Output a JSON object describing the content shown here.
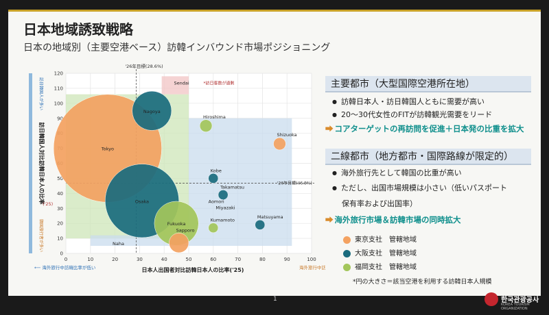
{
  "slide": {
    "title": "日本地域誘致戦略",
    "subtitle": "日本の地域別（主要空港ベース）訪韓インバウンド市場ポジショニング",
    "page": "1"
  },
  "colors": {
    "tokyo": "#f4a261",
    "osaka": "#1b6c7e",
    "fukuoka": "#a3c65b",
    "green_zone": "#cde6b8",
    "blue_zone": "#c9dced",
    "red_zone": "#f2c4c4",
    "teal_text": "#0f8f8c",
    "orange_arrow": "#d98b2b"
  },
  "chart_data": {
    "type": "scatter",
    "xlabel": "日本人出国者対比訪韓日本人の比率('25)",
    "ylabel": "訪日韓国人対比訪韓日本人の比率",
    "ylabel_year": "('25)",
    "ylabel_top_prefix": "訪日韓国人が多い",
    "ylabel_bottom": "韓国旅行者が多い",
    "x_left_note": "海外旅行中訪韓比率が低い",
    "x_right_note": "海外旅行中訪韓比率が高い",
    "xlim": [
      0,
      100
    ],
    "ylim": [
      0,
      120
    ],
    "x_ticks": [
      0,
      10,
      20,
      30,
      40,
      50,
      60,
      70,
      80,
      90,
      100
    ],
    "y_ticks": [
      0,
      10,
      20,
      30,
      40,
      50,
      60,
      70,
      80,
      90,
      100,
      110,
      120
    ],
    "grid": true,
    "target_x": {
      "value": 28.6,
      "label": "'26年目標(28.6%)"
    },
    "target_y": {
      "value": 46.8,
      "label": "'26年目標(46.8%)"
    },
    "zones": [
      {
        "name": "green",
        "x": [
          0,
          50
        ],
        "y": [
          10,
          106
        ]
      },
      {
        "name": "blue",
        "x": [
          50,
          92
        ],
        "y": [
          5,
          90
        ]
      },
      {
        "name": "blue-low",
        "x": [
          10,
          50
        ],
        "y": [
          5,
          12
        ]
      },
      {
        "name": "red",
        "x": [
          39,
          50
        ],
        "y": [
          106,
          118
        ]
      }
    ],
    "annotations": [
      {
        "text": "*訪日客数が過剰",
        "x": 56,
        "y": 112.5
      }
    ],
    "points": [
      {
        "name": "Tokyo",
        "x": 17,
        "y": 70,
        "size": 22,
        "group": "tokyo"
      },
      {
        "name": "Osaka",
        "x": 31,
        "y": 35,
        "size": 15,
        "group": "osaka"
      },
      {
        "name": "Nagoya",
        "x": 35,
        "y": 95,
        "size": 8,
        "group": "osaka"
      },
      {
        "name": "Fukuoka",
        "x": 45,
        "y": 20,
        "size": 9,
        "group": "fukuoka"
      },
      {
        "name": "Sapporo",
        "x": 46,
        "y": 7,
        "size": 4,
        "group": "tokyo"
      },
      {
        "name": "Naha",
        "x": 19,
        "y": 6,
        "size": 0,
        "group": "none"
      },
      {
        "name": "Sendai",
        "x": 44,
        "y": 113,
        "size": 0,
        "group": "none"
      },
      {
        "name": "Hiroshima",
        "x": 57,
        "y": 85,
        "size": 2.5,
        "group": "fukuoka"
      },
      {
        "name": "Kobe",
        "x": 60,
        "y": 50,
        "size": 2,
        "group": "osaka"
      },
      {
        "name": "Takamatsu",
        "x": 64,
        "y": 39,
        "size": 2,
        "group": "osaka"
      },
      {
        "name": "Aomori",
        "x": 58,
        "y": 34,
        "size": 0,
        "group": "none"
      },
      {
        "name": "Miyazaki",
        "x": 61,
        "y": 30,
        "size": 0,
        "group": "none"
      },
      {
        "name": "Kumamoto",
        "x": 60,
        "y": 17,
        "size": 2,
        "group": "fukuoka"
      },
      {
        "name": "Matsuyama",
        "x": 79,
        "y": 19,
        "size": 2,
        "group": "osaka"
      },
      {
        "name": "Shizuoka",
        "x": 87,
        "y": 73,
        "size": 2.5,
        "group": "tokyo"
      }
    ]
  },
  "panel": {
    "major": {
      "heading": "主要都市（大型国際空港所在地）",
      "bullets": [
        "訪韓日本人・訪日韓国人ともに需要が高い",
        "20～30代女性のFITが訪韓観光需要をリード"
      ],
      "arrow_mark": "⮕",
      "conclusion": "コアターゲットの再訪問を促進＋日本発の比重を拡大"
    },
    "secondary": {
      "heading": "二線都市（地方都市・国際路線が限定的）",
      "bullets": [
        "海外旅行先として韓国の比重が高い",
        "ただし、出国市場規模は小さい（低いパスポート"
      ],
      "bullet2_cont": "保有率および出国率）",
      "arrow_mark": "⮕",
      "conclusion": "海外旅行市場＆訪韓市場の同時拡大"
    },
    "legend": [
      {
        "label": "東京支社　管轄地域",
        "color": "#f4a261"
      },
      {
        "label": "大阪支社　管轄地域",
        "color": "#1b6c7e"
      },
      {
        "label": "福岡支社　管轄地域",
        "color": "#a3c65b"
      }
    ],
    "note": "*円の大きさ＝該当空港を利用する訪韓日本人規模"
  },
  "logo": {
    "name": "한국관광공사",
    "sub": "KOREA TOURISM ORGANIZATION"
  }
}
